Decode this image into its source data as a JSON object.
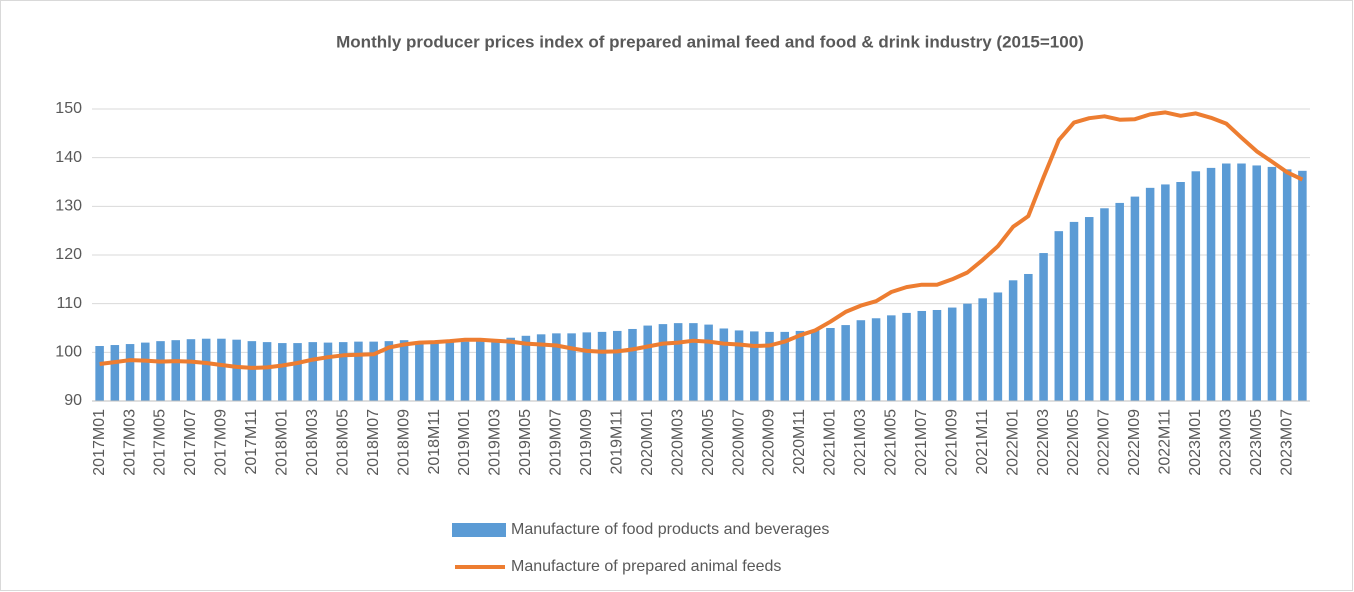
{
  "chart_data": {
    "type": "bar",
    "title": "Monthly producer prices index of prepared animal feed and food & drink industry (2015=100)",
    "categories": [
      "2017M01",
      null,
      "2017M03",
      null,
      "2017M05",
      null,
      "2017M07",
      null,
      "2017M09",
      null,
      "2017M11",
      null,
      "2018M01",
      null,
      "2018M03",
      null,
      "2018M05",
      null,
      "2018M07",
      null,
      "2018M09",
      null,
      "2018M11",
      null,
      "2019M01",
      null,
      "2019M03",
      null,
      "2019M05",
      null,
      "2019M07",
      null,
      "2019M09",
      null,
      "2019M11",
      null,
      "2020M01",
      null,
      "2020M03",
      null,
      "2020M05",
      null,
      "2020M07",
      null,
      "2020M09",
      null,
      "2020M11",
      null,
      "2021M01",
      null,
      "2021M03",
      null,
      "2021M05",
      null,
      "2021M07",
      null,
      "2021M09",
      null,
      "2021M11",
      null,
      "2022M01",
      null,
      "2022M03",
      null,
      "2022M05",
      null,
      "2022M07",
      null,
      "2022M09",
      null,
      "2022M11",
      null,
      "2023M01",
      null,
      "2023M03",
      null,
      "2023M05",
      null,
      "2023M07",
      null
    ],
    "series": [
      {
        "name": "Manufacture of food products and beverages",
        "type": "bar",
        "color": "#5b9bd5",
        "values": [
          101.3,
          101.5,
          101.7,
          102.0,
          102.3,
          102.5,
          102.7,
          102.8,
          102.8,
          102.6,
          102.3,
          102.1,
          101.9,
          101.9,
          102.1,
          102.0,
          102.1,
          102.2,
          102.2,
          102.3,
          102.5,
          102.2,
          102.1,
          102.1,
          102.2,
          102.4,
          102.7,
          103.0,
          103.4,
          103.7,
          103.9,
          103.9,
          104.1,
          104.2,
          104.4,
          104.8,
          105.5,
          105.8,
          106.0,
          106.0,
          105.7,
          104.9,
          104.5,
          104.3,
          104.2,
          104.2,
          104.4,
          104.6,
          105.0,
          105.6,
          106.6,
          107.0,
          107.6,
          108.1,
          108.5,
          108.7,
          109.2,
          110.0,
          111.1,
          112.3,
          114.8,
          116.1,
          120.4,
          124.9,
          126.8,
          127.8,
          129.6,
          130.7,
          132.0,
          133.8,
          134.5,
          135.0,
          137.2,
          137.9,
          138.8,
          138.8,
          138.4,
          138.1,
          137.6,
          137.3
        ]
      },
      {
        "name": "Manufacture of prepared animal feeds",
        "type": "line",
        "color": "#ed7d31",
        "values": [
          97.6,
          98.0,
          98.4,
          98.3,
          98.1,
          98.2,
          98.1,
          97.8,
          97.4,
          97.0,
          96.8,
          96.9,
          97.3,
          97.8,
          98.5,
          99.0,
          99.4,
          99.5,
          99.6,
          101.0,
          101.6,
          102.0,
          102.1,
          102.3,
          102.6,
          102.6,
          102.4,
          102.2,
          101.8,
          101.6,
          101.4,
          100.8,
          100.3,
          100.1,
          100.2,
          100.6,
          101.2,
          101.8,
          102.0,
          102.4,
          102.2,
          101.8,
          101.6,
          101.3,
          101.4,
          102.2,
          103.5,
          104.5,
          106.3,
          108.3,
          109.6,
          110.5,
          112.4,
          113.4,
          113.9,
          113.9,
          115.0,
          116.4,
          119.0,
          121.8,
          125.8,
          128.0,
          136.0,
          143.6,
          147.2,
          148.1,
          148.5,
          147.8,
          147.9,
          148.9,
          149.3,
          148.6,
          149.1,
          148.2,
          147.0,
          144.1,
          141.3,
          139.2,
          137.0,
          135.5
        ]
      }
    ],
    "ylim": [
      90,
      150
    ],
    "yticks": [
      90,
      100,
      110,
      120,
      130,
      140,
      150
    ],
    "grid": true
  }
}
